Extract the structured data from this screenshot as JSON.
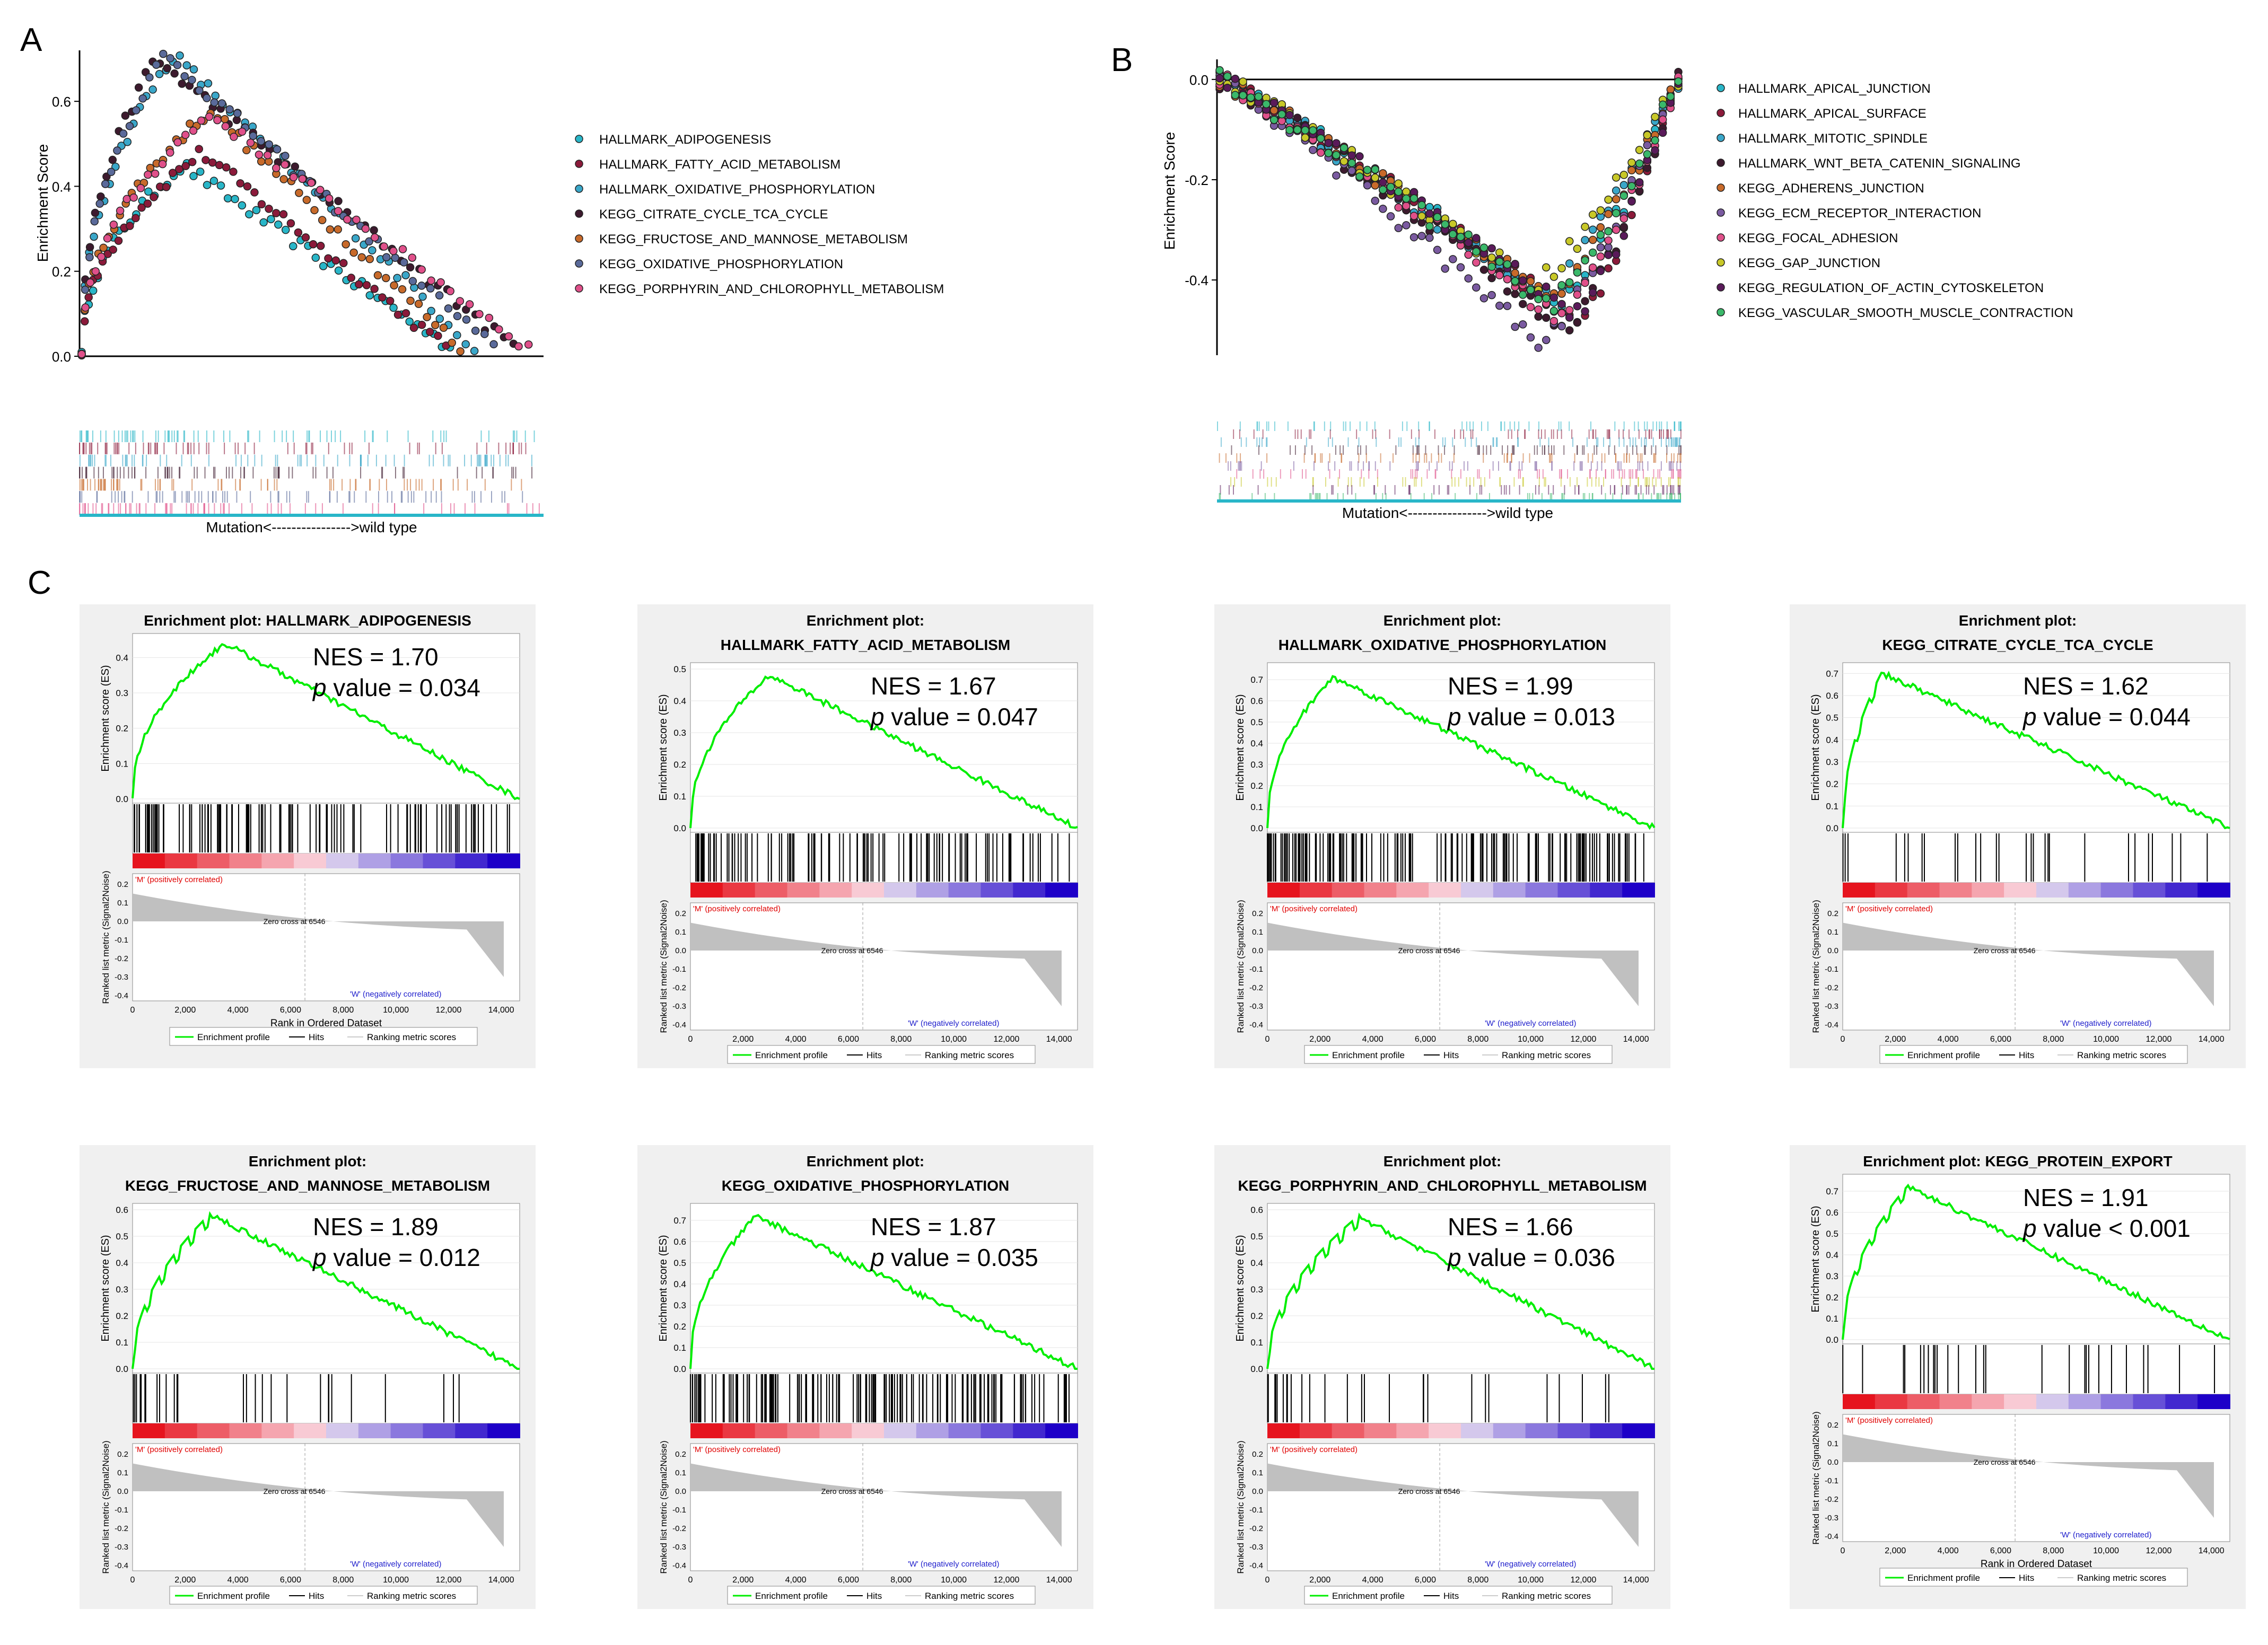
{
  "panel_labels": {
    "a": "A",
    "b": "B",
    "c": "C"
  },
  "colors": {
    "enrichment_line": "#00ee00",
    "heat_positive": "#e8000b",
    "heat_negative": "#1c00c8",
    "ranked_fill": "#c0c0c0",
    "panel_bg": "#f0f0f0"
  },
  "chart_data": [
    {
      "id": "A",
      "type": "scatter",
      "ylabel": "Enrichment Score",
      "xlabel": "Mutation<---------------->wild type",
      "yticks": [
        "0.0",
        "0.2",
        "0.4",
        "0.6"
      ],
      "ylim": [
        0,
        0.72
      ],
      "series": [
        {
          "name": "HALLMARK_ADIPOGENESIS",
          "color": "#29b6c8",
          "peak_x": 0.22,
          "peak_es": 0.45
        },
        {
          "name": "HALLMARK_FATTY_ACID_METABOLISM",
          "color": "#8b1a3a",
          "peak_x": 0.26,
          "peak_es": 0.48
        },
        {
          "name": "HALLMARK_OXIDATIVE_PHOSPHORYLATION",
          "color": "#3aa7c9",
          "peak_x": 0.2,
          "peak_es": 0.71
        },
        {
          "name": "KEGG_CITRATE_CYCLE_TCA_CYCLE",
          "color": "#3d1a2e",
          "peak_x": 0.16,
          "peak_es": 0.7
        },
        {
          "name": "KEGG_FRUCTOSE_AND_MANNOSE_METABOLISM",
          "color": "#c86a2a",
          "peak_x": 0.28,
          "peak_es": 0.58
        },
        {
          "name": "KEGG_OXIDATIVE_PHOSPHORYLATION",
          "color": "#5a6a9a",
          "peak_x": 0.18,
          "peak_es": 0.71
        },
        {
          "name": "KEGG_PORPHYRIN_AND_CHLOROPHYLL_METABOLISM",
          "color": "#e0508a",
          "peak_x": 0.28,
          "peak_es": 0.57
        }
      ]
    },
    {
      "id": "B",
      "type": "scatter",
      "ylabel": "Enrichment Score",
      "xlabel": "Mutation<---------------->wild type",
      "yticks": [
        "0.0",
        "-0.2",
        "-0.4"
      ],
      "ylim": [
        -0.55,
        0.04
      ],
      "series": [
        {
          "name": "HALLMARK_APICAL_JUNCTION",
          "color": "#29b6c8",
          "trough_x": 0.74,
          "trough_es": -0.45
        },
        {
          "name": "HALLMARK_APICAL_SURFACE",
          "color": "#8b1a3a",
          "trough_x": 0.78,
          "trough_es": -0.48
        },
        {
          "name": "HALLMARK_MITOTIC_SPINDLE",
          "color": "#3aa7c9",
          "trough_x": 0.7,
          "trough_es": -0.44
        },
        {
          "name": "HALLMARK_WNT_BETA_CATENIN_SIGNALING",
          "color": "#3d1a2e",
          "trough_x": 0.76,
          "trough_es": -0.5
        },
        {
          "name": "KEGG_ADHERENS_JUNCTION",
          "color": "#c86a2a",
          "trough_x": 0.72,
          "trough_es": -0.44
        },
        {
          "name": "KEGG_ECM_RECEPTOR_INTERACTION",
          "color": "#7a5aa0",
          "trough_x": 0.7,
          "trough_es": -0.53
        },
        {
          "name": "KEGG_FOCAL_ADHESION",
          "color": "#e0508a",
          "trough_x": 0.74,
          "trough_es": -0.48
        },
        {
          "name": "KEGG_GAP_JUNCTION",
          "color": "#c8c828",
          "trough_x": 0.68,
          "trough_es": -0.41
        },
        {
          "name": "KEGG_REGULATION_OF_ACTIN_CYTOSKELETON",
          "color": "#5a1a5a",
          "trough_x": 0.78,
          "trough_es": -0.47
        },
        {
          "name": "KEGG_VASCULAR_SMOOTH_MUSCLE_CONTRACTION",
          "color": "#3ab86a",
          "trough_x": 0.72,
          "trough_es": -0.45
        }
      ]
    },
    {
      "id": "C",
      "type": "line",
      "subplots": [
        {
          "title": "Enrichment plot: HALLMARK_ADIPOGENESIS",
          "nes": "NES = 1.70",
          "pv": "value = 0.034",
          "ymax": 0.45,
          "yticks": [
            "0.0",
            "0.1",
            "0.2",
            "0.3",
            "0.4"
          ],
          "peak": 0.44,
          "peak_rank": 3500,
          "end_es": 0.0,
          "hit_mode": 0
        },
        {
          "title": "Enrichment plot: HALLMARK_FATTY_ACID_METABOLISM",
          "nes": "NES = 1.67",
          "pv": "value = 0.047",
          "ymax": 0.5,
          "yticks": [
            "0.0",
            "0.1",
            "0.2",
            "0.3",
            "0.4",
            "0.5"
          ],
          "peak": 0.48,
          "peak_rank": 3000,
          "end_es": 0.0,
          "hit_mode": 0
        },
        {
          "title": "Enrichment plot: HALLMARK_OXIDATIVE_PHOSPHORYLATION",
          "nes": "NES = 1.99",
          "pv": "value = 0.013",
          "ymax": 0.75,
          "yticks": [
            "0.0",
            "0.1",
            "0.2",
            "0.3",
            "0.4",
            "0.5",
            "0.6",
            "0.7"
          ],
          "peak": 0.71,
          "peak_rank": 2500,
          "end_es": 0.0,
          "hit_mode": 1
        },
        {
          "title": "Enrichment plot: KEGG_CITRATE_CYCLE_TCA_CYCLE",
          "nes": "NES = 1.62",
          "pv": "value = 0.044",
          "ymax": 0.72,
          "yticks": [
            "0.0",
            "0.1",
            "0.2",
            "0.3",
            "0.4",
            "0.5",
            "0.6",
            "0.7"
          ],
          "peak": 0.7,
          "peak_rank": 1500,
          "end_es": 0.0,
          "hit_mode": 2
        },
        {
          "title": "Enrichment plot: KEGG_FRUCTOSE_AND_MANNOSE_METABOLISM",
          "nes": "NES = 1.89",
          "pv": "value = 0.012",
          "ymax": 0.6,
          "yticks": [
            "0.0",
            "0.1",
            "0.2",
            "0.3",
            "0.4",
            "0.5",
            "0.6"
          ],
          "peak": 0.58,
          "peak_rank": 3000,
          "end_es": 0.0,
          "hit_mode": 2
        },
        {
          "title": "Enrichment plot: KEGG_OXIDATIVE_PHOSPHORYLATION",
          "nes": "NES = 1.87",
          "pv": "value = 0.035",
          "ymax": 0.75,
          "yticks": [
            "0.0",
            "0.1",
            "0.2",
            "0.3",
            "0.4",
            "0.5",
            "0.6",
            "0.7"
          ],
          "peak": 0.72,
          "peak_rank": 2500,
          "end_es": 0.0,
          "hit_mode": 1
        },
        {
          "title": "Enrichment plot: KEGG_PORPHYRIN_AND_CHLOROPHYLL_METABOLISM",
          "nes": "NES = 1.66",
          "pv": "value = 0.036",
          "ymax": 0.6,
          "yticks": [
            "0.0",
            "0.1",
            "0.2",
            "0.3",
            "0.4",
            "0.5",
            "0.6"
          ],
          "peak": 0.57,
          "peak_rank": 3500,
          "end_es": 0.0,
          "hit_mode": 2
        },
        {
          "title": "Enrichment plot: KEGG_PROTEIN_EXPORT",
          "nes": "NES = 1.91",
          "pv": "value < 0.001",
          "ymax": 0.75,
          "yticks": [
            "0.0",
            "0.1",
            "0.2",
            "0.3",
            "0.4",
            "0.5",
            "0.6",
            "0.7"
          ],
          "peak": 0.72,
          "peak_rank": 2500,
          "end_es": 0.0,
          "hit_mode": 2
        }
      ],
      "common": {
        "ylabel_es": "Enrichment score (ES)",
        "ylabel_rank": "Ranked list metric (Signal2Noise)",
        "xlabel": "Rank in Ordered Dataset",
        "xticks": [
          "0",
          "2,000",
          "4,000",
          "6,000",
          "8,000",
          "10,000",
          "12,000",
          "14,000"
        ],
        "xmax": 14700,
        "rank_yticks": [
          "0.2",
          "0.1",
          "0.0",
          "-0.1",
          "-0.2",
          "-0.3",
          "-0.4"
        ],
        "pos_label": "'M' (positively correlated)",
        "neg_label": "'W' (negatively correlated)",
        "zero_cross": "Zero cross at 6546",
        "zero_cross_rank": 6546,
        "p_letter": "p",
        "legend": [
          "Enrichment profile",
          "Hits",
          "Ranking metric scores"
        ]
      }
    }
  ]
}
